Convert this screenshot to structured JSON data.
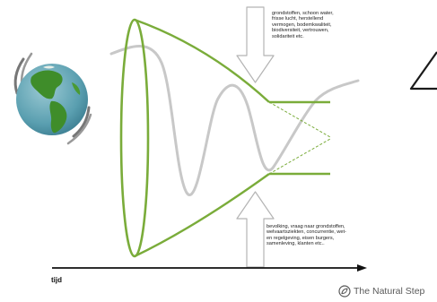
{
  "notes": {
    "top": "grondstoffen, schoon water,\nfrisse lucht, herstellend\nvermogen, bodemkwaliteit,\nbiodiversiteit, vertrouwen,\nsolidariteit etc.",
    "bottom": "bevolking, vraag naar grondstoffen,\nwelvaartsziekten, concurrentie, wet-\nen regelgeving, eisen burgers,\nsamenleving, klanten etc.."
  },
  "axis": {
    "label": "tijd"
  },
  "brand": {
    "name": "The Natural Step"
  },
  "icons": {
    "globe": "earth-globe-icon",
    "brand_logo": "natural-step-logo-icon"
  },
  "colors": {
    "funnel": "#7aac3a",
    "wave": "#c8c8c8",
    "arrow_outline": "#b4b4b4",
    "ocean": "#5a9fb0",
    "land": "#3f8d2a",
    "axis": "#111111"
  }
}
